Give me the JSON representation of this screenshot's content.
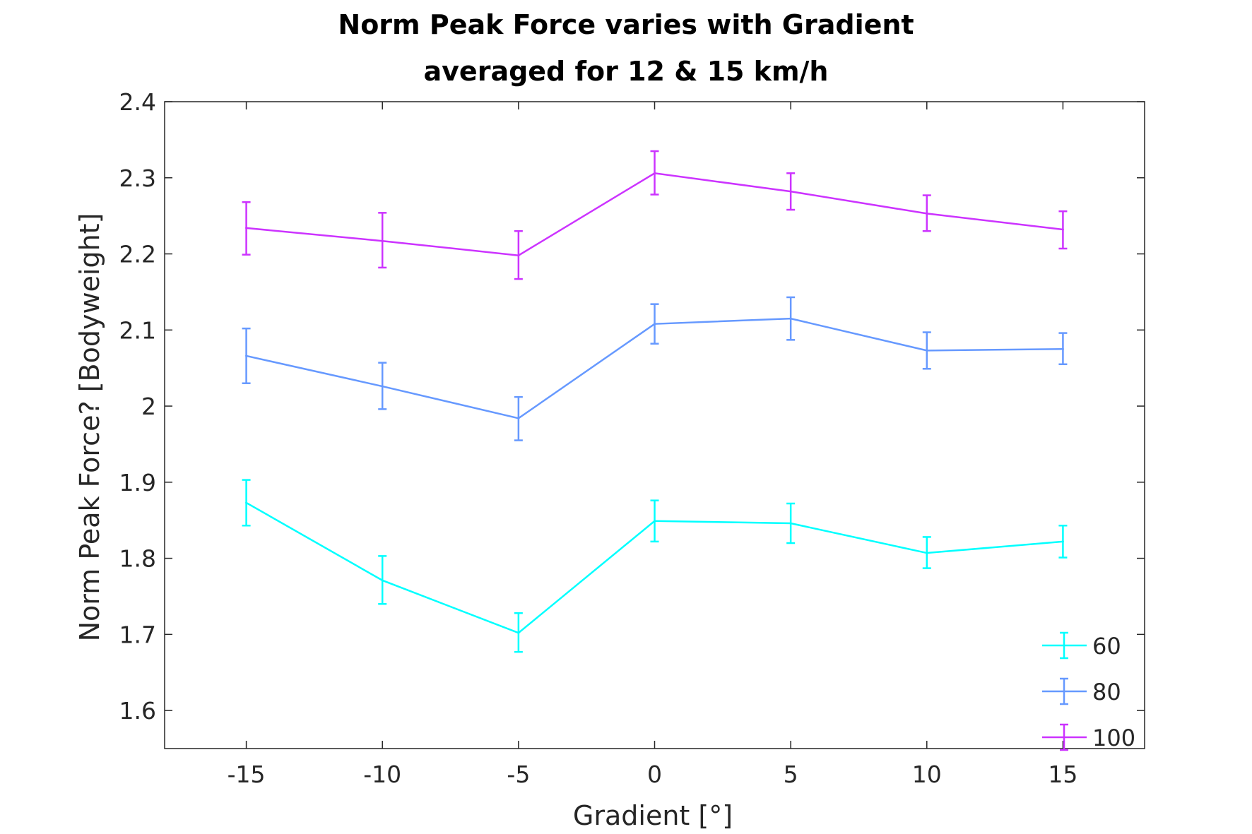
{
  "chart_data": {
    "type": "line",
    "title": "Norm Peak Force varies with Gradient",
    "subtitle": "averaged for 12 & 15 km/h",
    "xlabel": "Gradient [°]",
    "ylabel": "Norm Peak Force? [Bodyweight]",
    "xlim": [
      -18,
      18
    ],
    "ylim": [
      1.55,
      2.4
    ],
    "xticks": [
      -15,
      -10,
      -5,
      0,
      5,
      10,
      15
    ],
    "xtick_labels": [
      "-15",
      "-10",
      "-5",
      "0",
      "5",
      "10",
      "15"
    ],
    "yticks": [
      1.6,
      1.7,
      1.8,
      1.9,
      2.0,
      2.1,
      2.2,
      2.3,
      2.4
    ],
    "ytick_labels": [
      "1.6",
      "1.7",
      "1.8",
      "1.9",
      "2",
      "2.1",
      "2.2",
      "2.3",
      "2.4"
    ],
    "grid": false,
    "legend_position": "bottom-right",
    "x": [
      -15,
      -10,
      -5,
      0,
      5,
      10,
      15
    ],
    "series": [
      {
        "name": "60",
        "color": "#00ffff",
        "values": [
          1.873,
          1.771,
          1.702,
          1.849,
          1.846,
          1.807,
          1.822
        ],
        "err_low": [
          1.843,
          1.74,
          1.677,
          1.822,
          1.82,
          1.787,
          1.801
        ],
        "err_high": [
          1.903,
          1.803,
          1.728,
          1.876,
          1.872,
          1.828,
          1.843
        ]
      },
      {
        "name": "80",
        "color": "#6699ff",
        "values": [
          2.066,
          2.026,
          1.984,
          2.108,
          2.115,
          2.073,
          2.075
        ],
        "err_low": [
          2.03,
          1.996,
          1.955,
          2.082,
          2.087,
          2.049,
          2.055
        ],
        "err_high": [
          2.102,
          2.057,
          2.012,
          2.134,
          2.143,
          2.097,
          2.096
        ]
      },
      {
        "name": "100",
        "color": "#cc33ff",
        "values": [
          2.234,
          2.217,
          2.198,
          2.306,
          2.282,
          2.253,
          2.232
        ],
        "err_low": [
          2.199,
          2.182,
          2.167,
          2.278,
          2.258,
          2.23,
          2.207
        ],
        "err_high": [
          2.268,
          2.254,
          2.23,
          2.335,
          2.306,
          2.277,
          2.256
        ]
      }
    ]
  }
}
